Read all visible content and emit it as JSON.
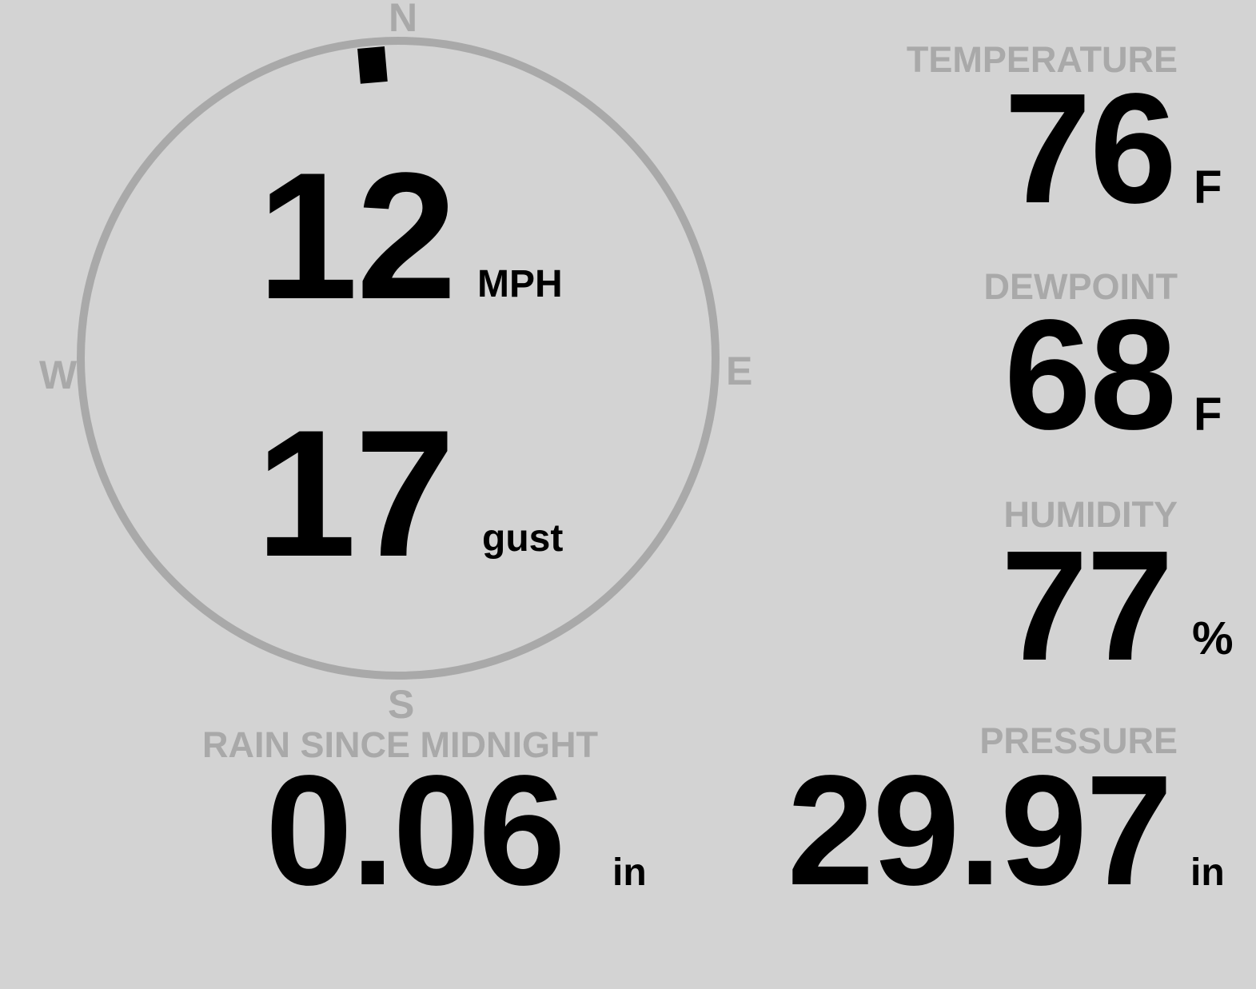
{
  "wind": {
    "speed": "12",
    "speed_unit": "MPH",
    "gust": "17",
    "gust_unit": "gust",
    "direction_deg": 355,
    "compass": {
      "n": "N",
      "e": "E",
      "s": "S",
      "w": "W"
    }
  },
  "temperature": {
    "label": "TEMPERATURE",
    "value": "76",
    "unit": "F"
  },
  "dewpoint": {
    "label": "DEWPOINT",
    "value": "68",
    "unit": "F"
  },
  "humidity": {
    "label": "HUMIDITY",
    "value": "77",
    "unit": "%"
  },
  "pressure": {
    "label": "PRESSURE",
    "value": "29.97",
    "unit": "in"
  },
  "rain": {
    "label": "RAIN SINCE MIDNIGHT",
    "value": "0.06",
    "unit": "in"
  },
  "colors": {
    "background": "#d3d3d3",
    "label": "#a9a9a9",
    "value": "#000000"
  }
}
